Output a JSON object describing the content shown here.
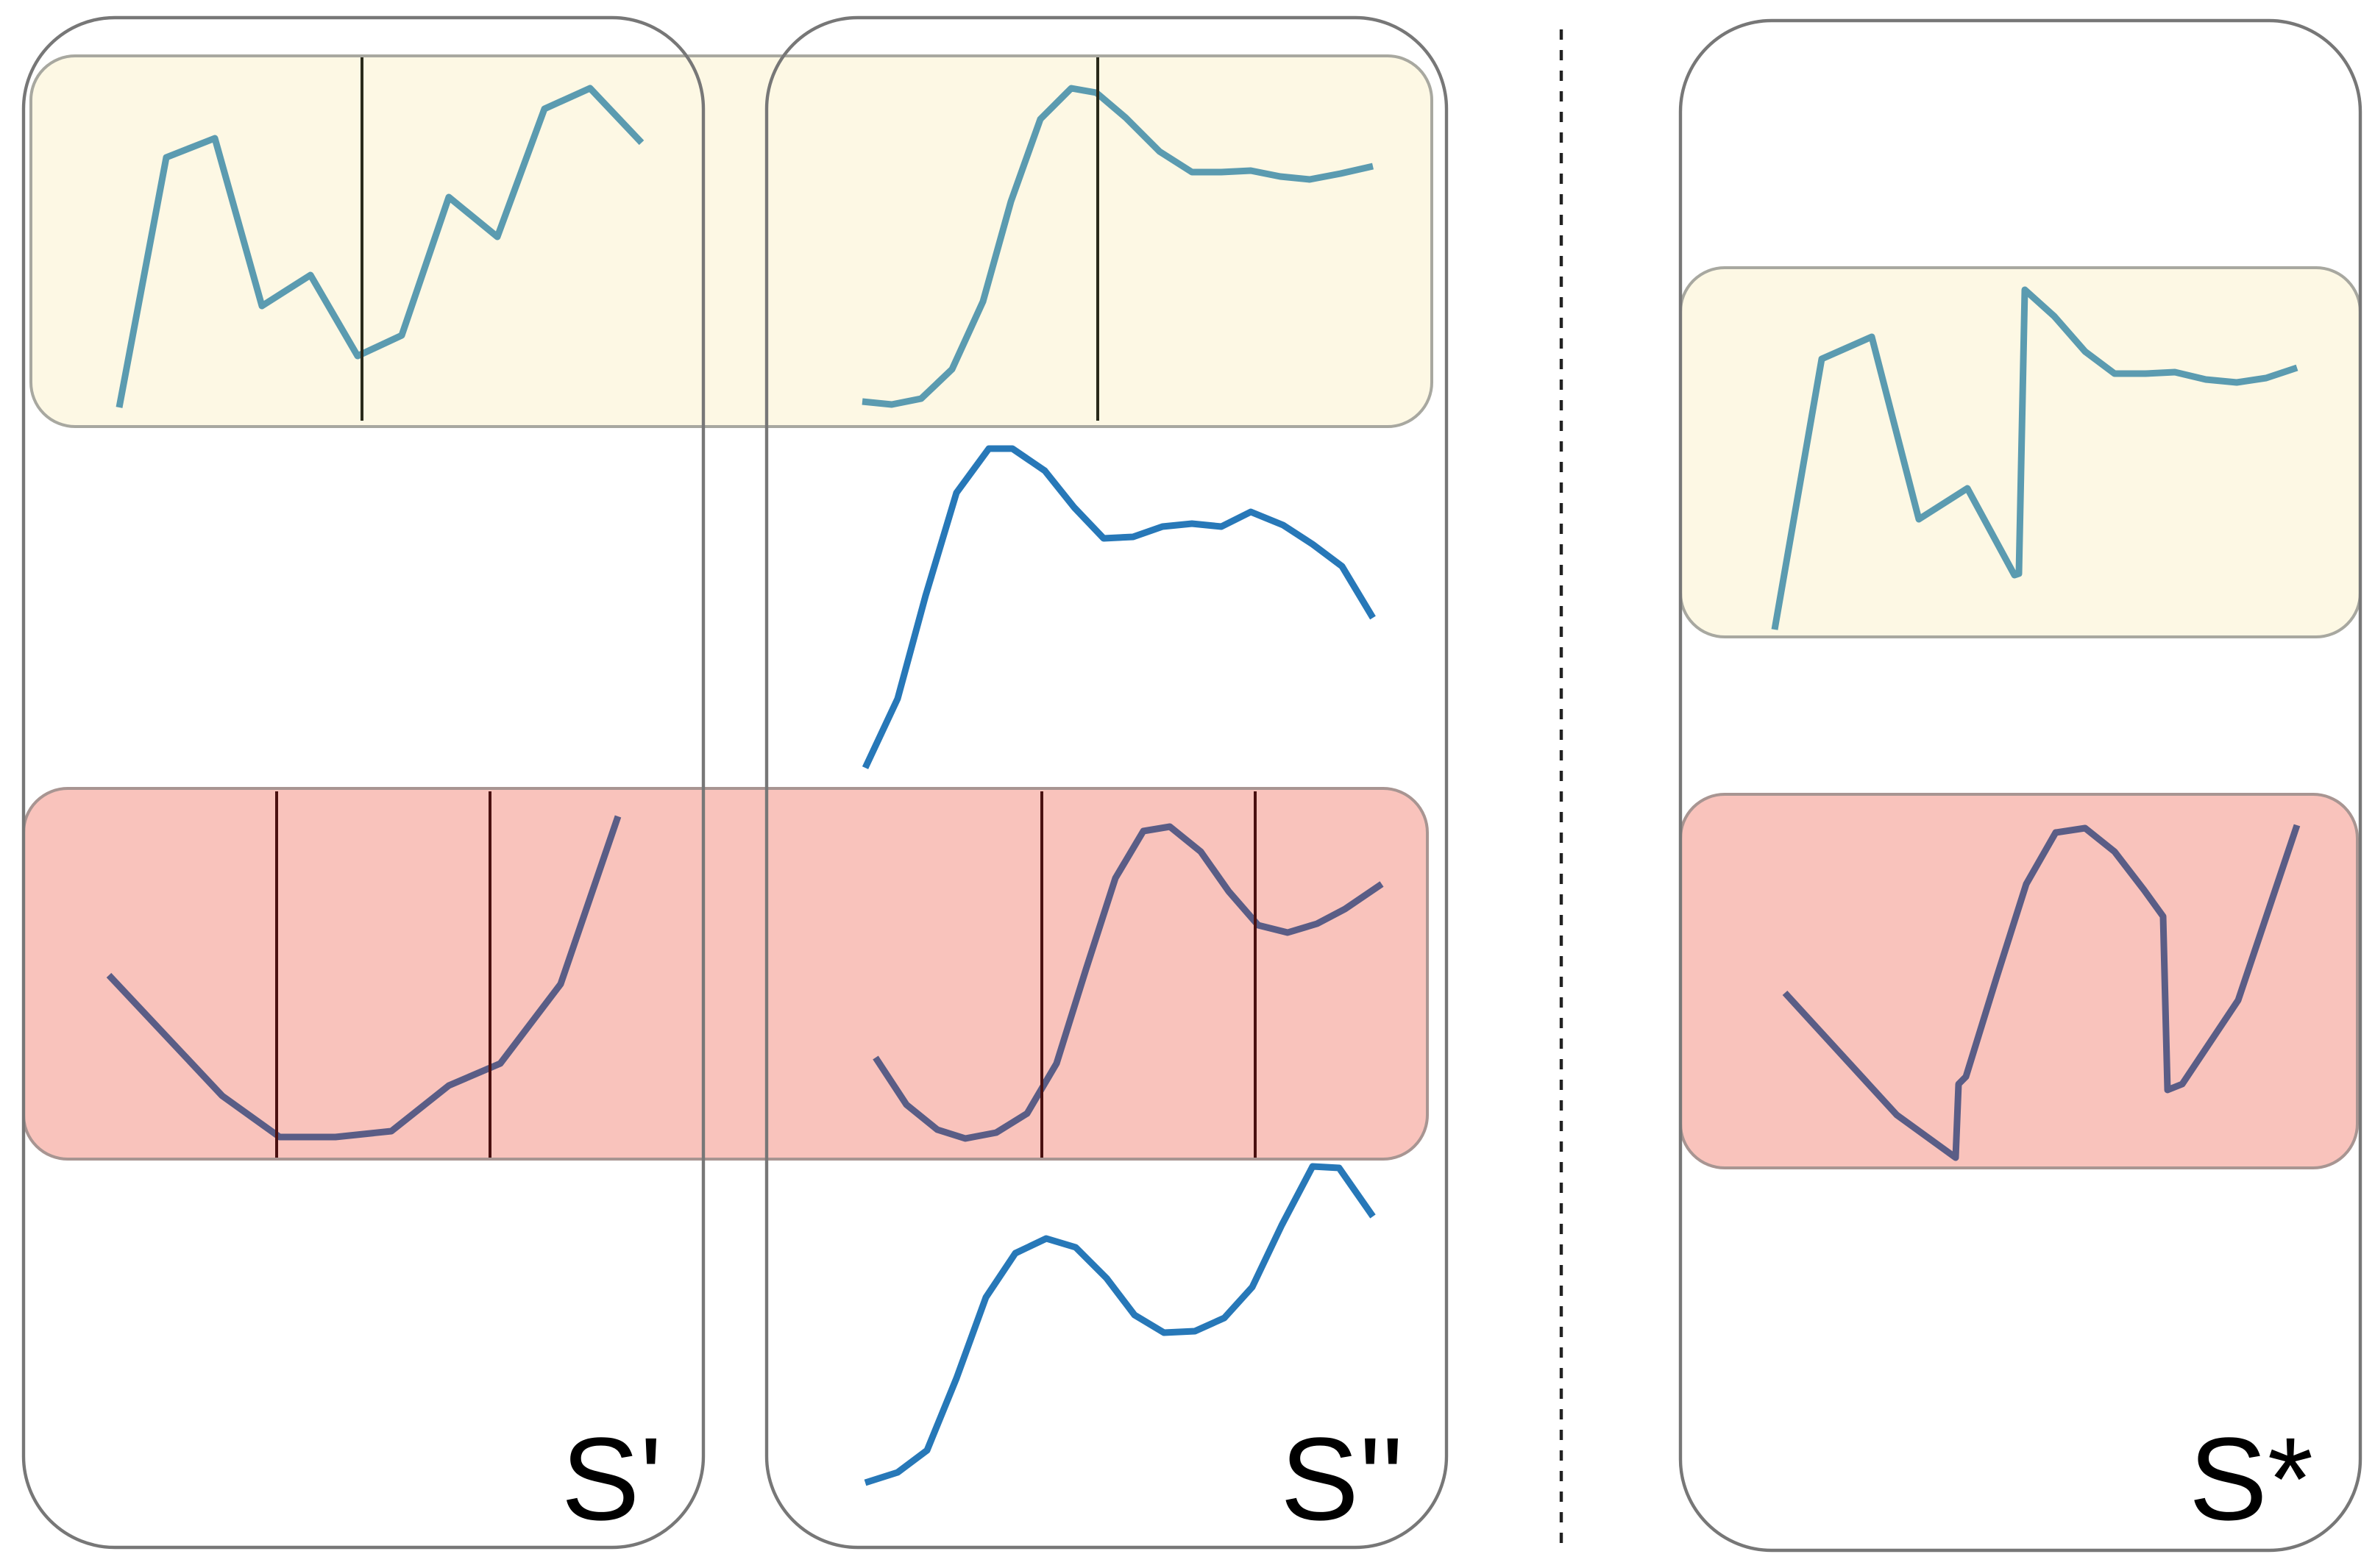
{
  "labels": {
    "s_prime": "S'",
    "s_double_prime": "S''",
    "s_star": "S*"
  },
  "colors": {
    "yellow_band": "#fdf8e4",
    "red_band": "#f9c3bc",
    "teal_line": "#5b9bb0",
    "blue_line": "#2778b8",
    "purple_line": "#5a5d86",
    "panel_border": "#777777",
    "cut_line": "#1a1a1a"
  },
  "icons": {
    "panel_divider": "dashed-vertical-line",
    "cut_marker": "vertical-cut-line"
  }
}
